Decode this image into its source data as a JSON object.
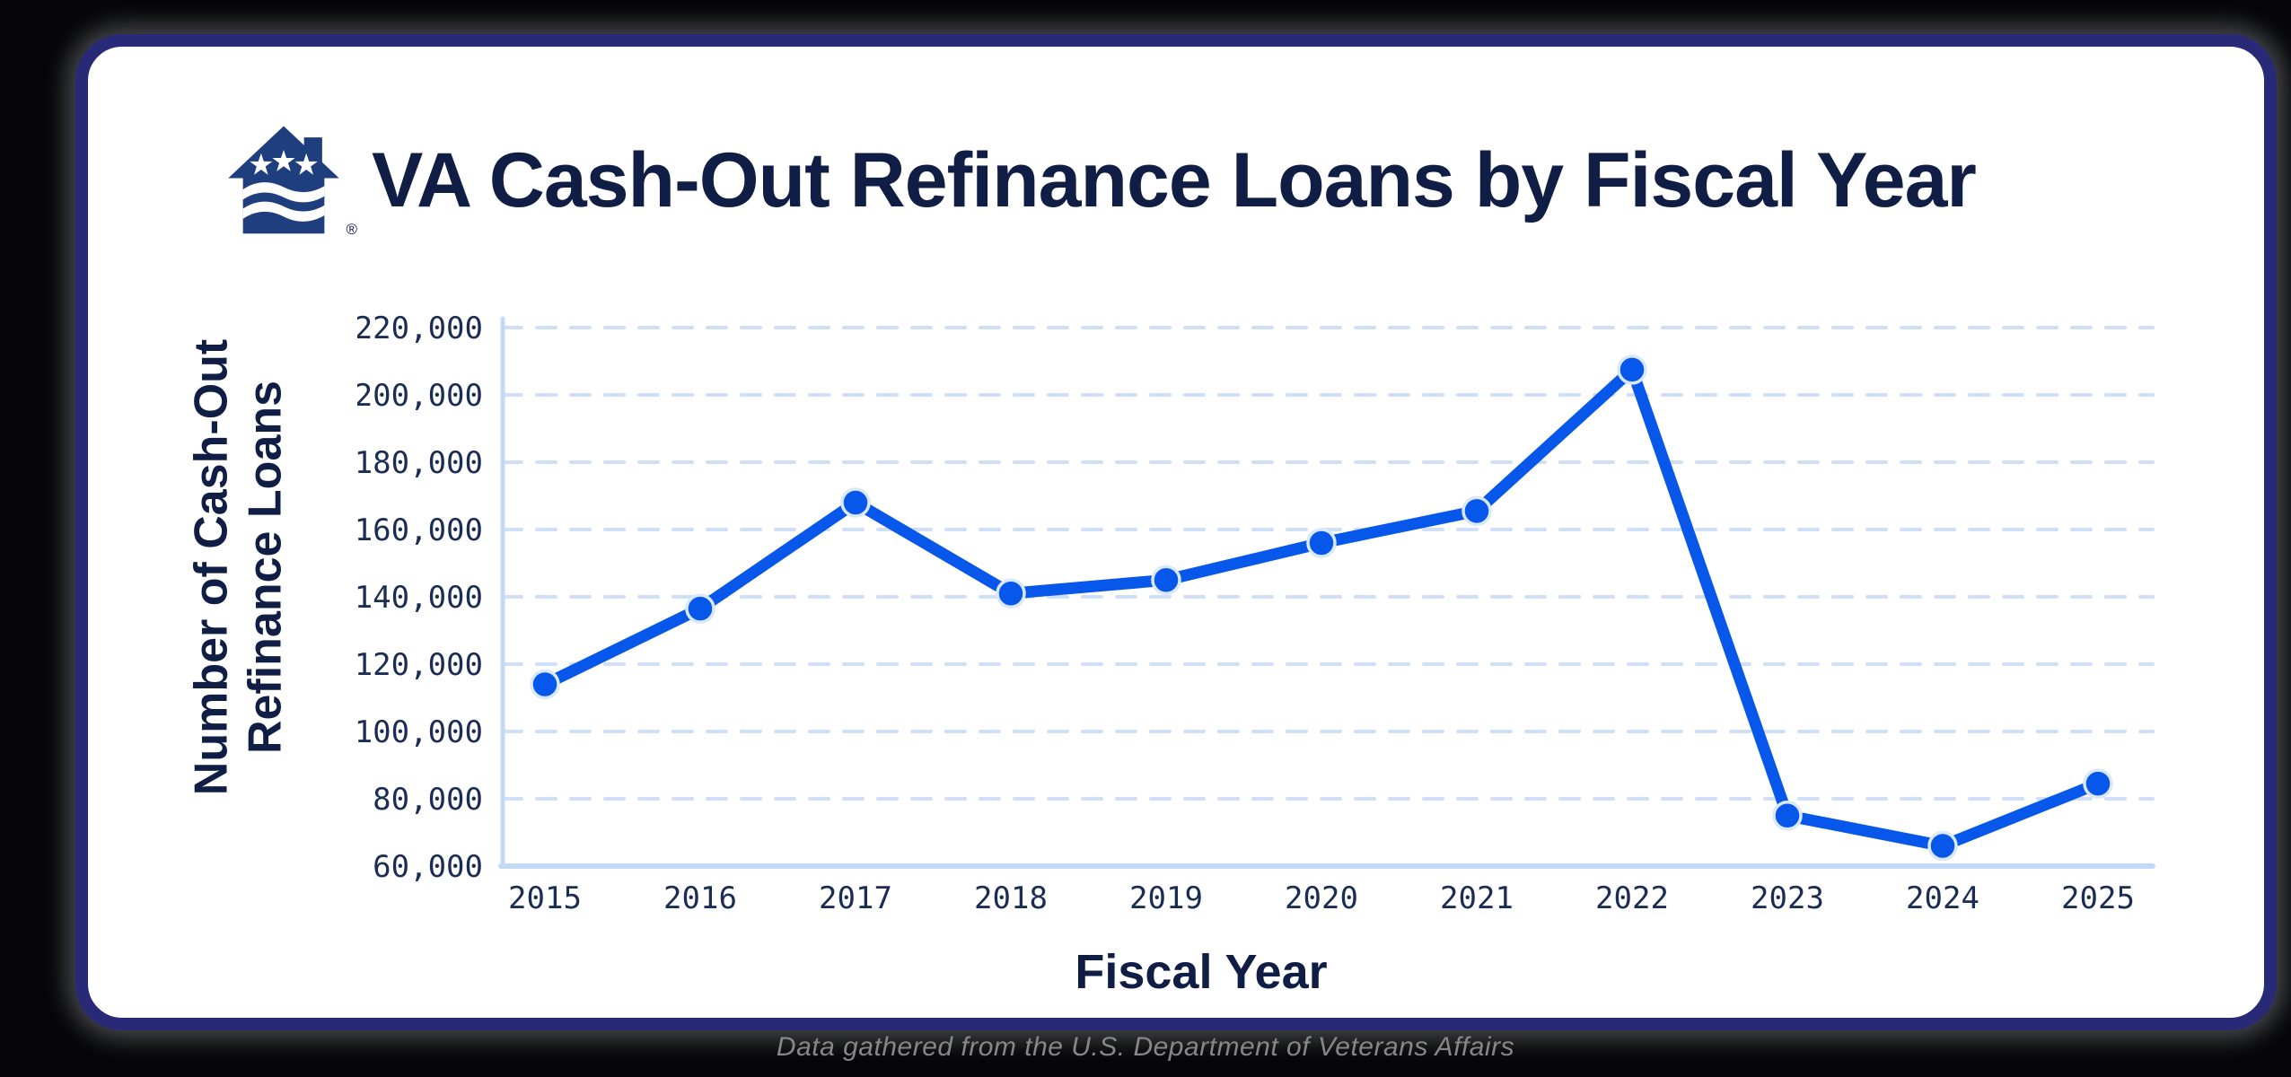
{
  "header": {
    "title": "VA Cash-Out Refinance Loans by Fiscal Year",
    "logo_name": "va-house-logo",
    "registered_mark": "®"
  },
  "chart_data": {
    "type": "line",
    "series_name": "VA Cash-Out Refinance Loans",
    "categories": [
      "2015",
      "2016",
      "2017",
      "2018",
      "2019",
      "2020",
      "2021",
      "2022",
      "2023",
      "2024",
      "2025"
    ],
    "values": [
      114000,
      136500,
      168000,
      141000,
      145000,
      156000,
      165500,
      207500,
      75000,
      66000,
      84500
    ],
    "xlabel": "Fiscal Year",
    "ylabel_lines": [
      "Number of Cash-Out",
      "Refinance Loans"
    ],
    "ylim": [
      60000,
      220000
    ],
    "ytick_step": 20000,
    "grid": "horizontal-dashed",
    "legend": "none",
    "colors": {
      "line": "#0857EB",
      "marker": "#0857EB",
      "marker_ring": "#D9E8FB",
      "gridline": "#CFDFF7",
      "axis": "#C4D9F6",
      "tick_text": "#1B2C55"
    }
  },
  "footer": {
    "source_note": "Data gathered from the U.S. Department of Veterans Affairs"
  },
  "theme": {
    "background": "#060608",
    "card_bg": "#FFFFFF",
    "card_border": "#282A78",
    "heading_text": "#101D45",
    "logo_navy": "#1E3E7E"
  }
}
